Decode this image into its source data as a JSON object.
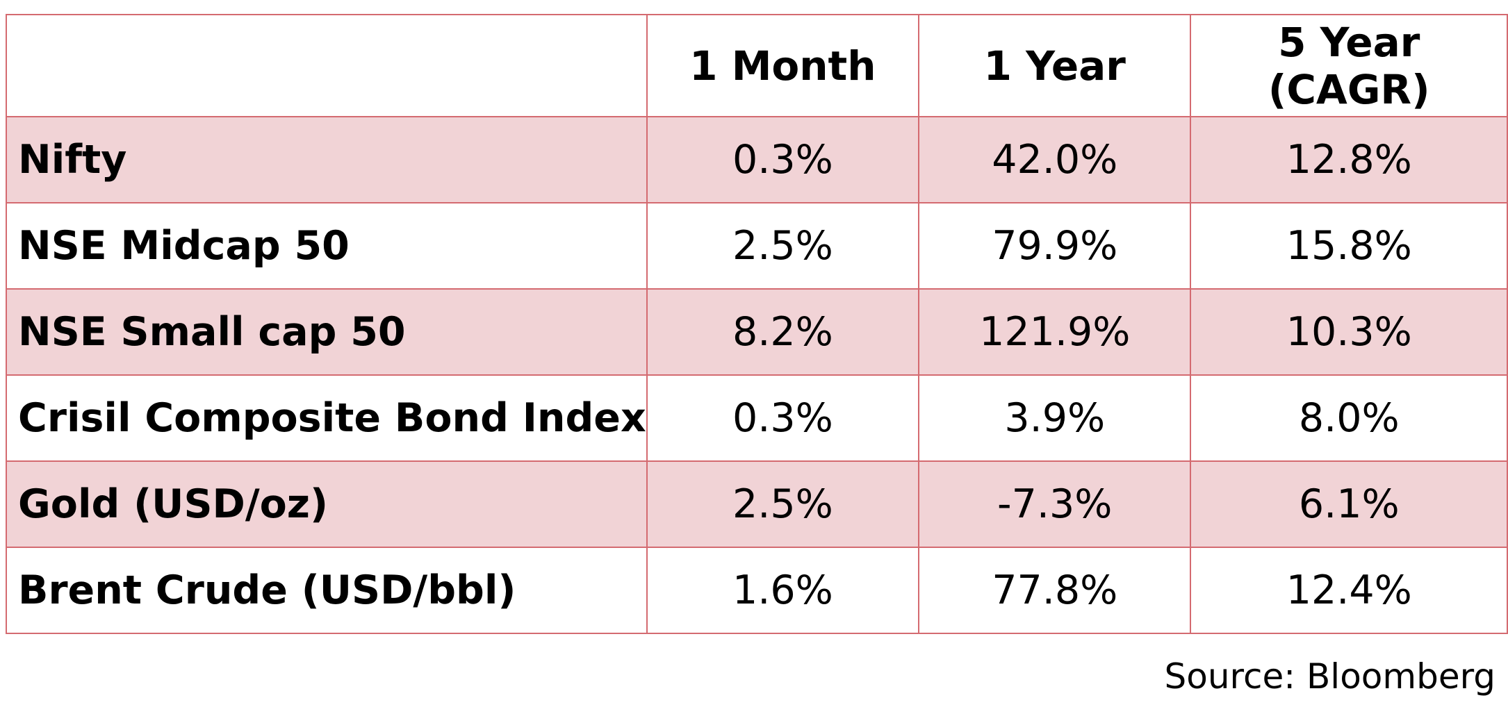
{
  "table": {
    "columns": [
      "",
      "1 Month",
      "1 Year",
      "5 Year (CAGR)"
    ],
    "rows": [
      {
        "label": "Nifty",
        "m1": "0.3%",
        "y1": "42.0%",
        "y5": "12.8%"
      },
      {
        "label": "NSE Midcap 50",
        "m1": "2.5%",
        "y1": "79.9%",
        "y5": "15.8%"
      },
      {
        "label": "NSE Small cap 50",
        "m1": "8.2%",
        "y1": "121.9%",
        "y5": "10.3%"
      },
      {
        "label": "Crisil Composite Bond Index",
        "m1": "0.3%",
        "y1": "3.9%",
        "y5": "8.0%"
      },
      {
        "label": "Gold (USD/oz)",
        "m1": "2.5%",
        "y1": "-7.3%",
        "y5": "6.1%"
      },
      {
        "label": "Brent Crude (USD/bbl)",
        "m1": "1.6%",
        "y1": "77.8%",
        "y5": "12.4%"
      }
    ]
  },
  "source": "Source: Bloomberg",
  "colors": {
    "border": "#d46a70",
    "shaded_row": "#f1d3d6"
  }
}
